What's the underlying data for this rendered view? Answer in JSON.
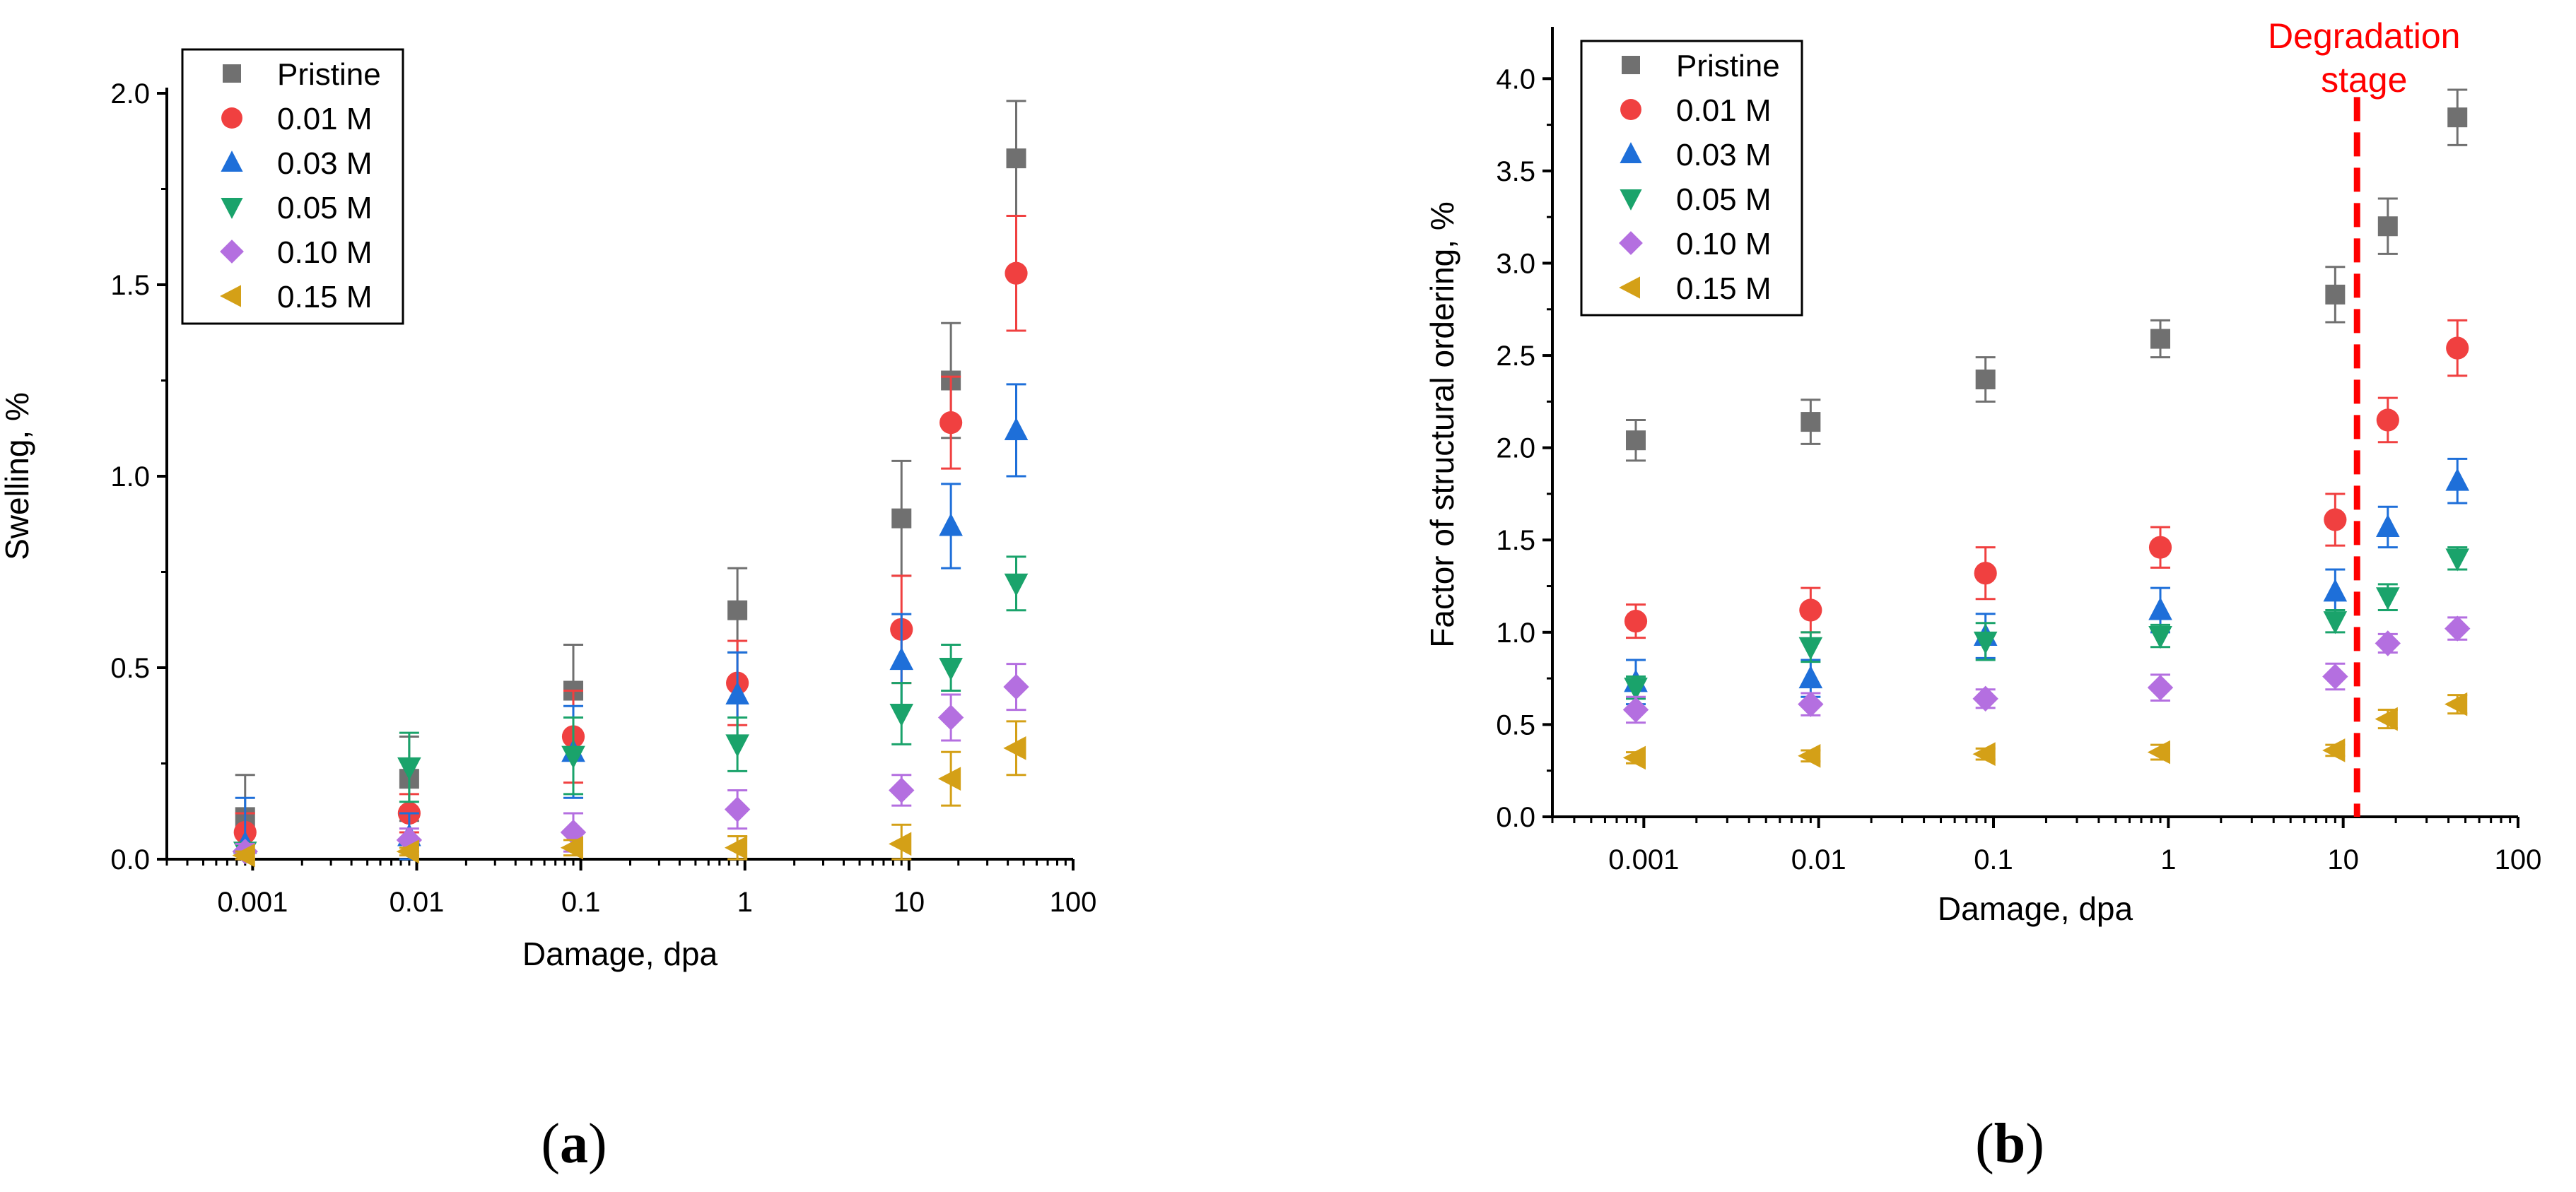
{
  "chart_data": [
    {
      "type": "scatter",
      "panel_label": "a",
      "xlabel": "Damage, dpa",
      "ylabel": "Swelling, %",
      "xscale": "log",
      "xlim": [
        0.0003,
        100
      ],
      "ylim": [
        0,
        2.0
      ],
      "xticks": [
        0.001,
        0.01,
        0.1,
        1,
        10,
        100
      ],
      "xtick_labels": [
        "0.001",
        "0.01",
        "0.1",
        "1",
        "10",
        "100"
      ],
      "yticks": [
        0,
        0.5,
        1.0,
        1.5,
        2.0
      ],
      "ytick_labels": [
        "0.0",
        "0.5",
        "1.0",
        "1.5",
        "2.0"
      ],
      "legend_position": "top-left",
      "series": [
        {
          "name": "Pristine",
          "color": "#707070",
          "marker": "square",
          "x": [
            0.0009,
            0.009,
            0.09,
            0.9,
            9,
            18,
            45
          ],
          "y": [
            0.11,
            0.21,
            0.44,
            0.65,
            0.89,
            1.25,
            1.83
          ],
          "err": [
            0.11,
            0.11,
            0.12,
            0.11,
            0.15,
            0.15,
            0.15
          ]
        },
        {
          "name": "0.01 M",
          "color": "#f04040",
          "marker": "circle",
          "x": [
            0.0009,
            0.009,
            0.09,
            0.9,
            9,
            18,
            45
          ],
          "y": [
            0.07,
            0.12,
            0.32,
            0.46,
            0.6,
            1.14,
            1.53
          ],
          "err": [
            0.05,
            0.05,
            0.12,
            0.11,
            0.14,
            0.12,
            0.15
          ]
        },
        {
          "name": "0.03 M",
          "color": "#1e6fd9",
          "marker": "triangle-up",
          "x": [
            0.0009,
            0.009,
            0.09,
            0.9,
            9,
            18,
            45
          ],
          "y": [
            0.04,
            0.06,
            0.28,
            0.43,
            0.52,
            0.87,
            1.12
          ],
          "err": [
            0.12,
            0.06,
            0.12,
            0.11,
            0.12,
            0.11,
            0.12
          ]
        },
        {
          "name": "0.05 M",
          "color": "#1aa36b",
          "marker": "triangle-down",
          "x": [
            0.0009,
            0.009,
            0.09,
            0.9,
            9,
            18,
            45
          ],
          "y": [
            0.02,
            0.24,
            0.27,
            0.3,
            0.38,
            0.5,
            0.72
          ],
          "err": [
            0.02,
            0.09,
            0.1,
            0.07,
            0.08,
            0.06,
            0.07
          ]
        },
        {
          "name": "0.10 M",
          "color": "#b46fe0",
          "marker": "diamond",
          "x": [
            0.0009,
            0.009,
            0.09,
            0.9,
            9,
            18,
            45
          ],
          "y": [
            0.02,
            0.05,
            0.07,
            0.13,
            0.18,
            0.37,
            0.45
          ],
          "err": [
            0.02,
            0.03,
            0.05,
            0.05,
            0.04,
            0.06,
            0.06
          ]
        },
        {
          "name": "0.15 M",
          "color": "#d4a017",
          "marker": "triangle-left",
          "x": [
            0.0009,
            0.009,
            0.09,
            0.9,
            9,
            18,
            45
          ],
          "y": [
            0.01,
            0.02,
            0.03,
            0.03,
            0.04,
            0.21,
            0.29
          ],
          "err": [
            0.01,
            0.01,
            0.02,
            0.03,
            0.05,
            0.07,
            0.07
          ]
        }
      ]
    },
    {
      "type": "scatter",
      "panel_label": "b",
      "xlabel": "Damage, dpa",
      "ylabel": "Factor of structural ordering, %",
      "xscale": "log",
      "xlim": [
        0.0003,
        100
      ],
      "ylim": [
        0,
        4.25
      ],
      "xticks": [
        0.001,
        0.01,
        0.1,
        1,
        10,
        100
      ],
      "xtick_labels": [
        "0.001",
        "0.01",
        "0.1",
        "1",
        "10",
        "100"
      ],
      "yticks": [
        0,
        0.5,
        1.0,
        1.5,
        2.0,
        2.5,
        3.0,
        3.5,
        4.0
      ],
      "ytick_labels": [
        "0.0",
        "0.5",
        "1.0",
        "1.5",
        "2.0",
        "2.5",
        "3.0",
        "3.5",
        "4.0"
      ],
      "legend_position": "top-left",
      "annotation": {
        "text_line1": "Degradation",
        "text_line2": "stage",
        "x": 12,
        "color": "#ff0000"
      },
      "series": [
        {
          "name": "Pristine",
          "color": "#707070",
          "marker": "square",
          "x": [
            0.0009,
            0.009,
            0.09,
            0.9,
            9,
            18,
            45
          ],
          "y": [
            2.04,
            2.14,
            2.37,
            2.59,
            2.83,
            3.2,
            3.79
          ],
          "err": [
            0.11,
            0.12,
            0.12,
            0.1,
            0.15,
            0.15,
            0.15
          ]
        },
        {
          "name": "0.01 M",
          "color": "#f04040",
          "marker": "circle",
          "x": [
            0.0009,
            0.009,
            0.09,
            0.9,
            9,
            18,
            45
          ],
          "y": [
            1.06,
            1.12,
            1.32,
            1.46,
            1.61,
            2.15,
            2.54
          ],
          "err": [
            0.09,
            0.12,
            0.14,
            0.11,
            0.14,
            0.12,
            0.15
          ]
        },
        {
          "name": "0.03 M",
          "color": "#1e6fd9",
          "marker": "triangle-up",
          "x": [
            0.0009,
            0.009,
            0.09,
            0.9,
            9,
            18,
            45
          ],
          "y": [
            0.73,
            0.75,
            0.98,
            1.12,
            1.22,
            1.57,
            1.82
          ],
          "err": [
            0.12,
            0.1,
            0.12,
            0.12,
            0.12,
            0.11,
            0.12
          ]
        },
        {
          "name": "0.05 M",
          "color": "#1aa36b",
          "marker": "triangle-down",
          "x": [
            0.0009,
            0.009,
            0.09,
            0.9,
            9,
            18,
            45
          ],
          "y": [
            0.7,
            0.92,
            0.95,
            0.98,
            1.06,
            1.19,
            1.4
          ],
          "err": [
            0.06,
            0.08,
            0.1,
            0.06,
            0.06,
            0.07,
            0.06
          ]
        },
        {
          "name": "0.10 M",
          "color": "#b46fe0",
          "marker": "diamond",
          "x": [
            0.0009,
            0.009,
            0.09,
            0.9,
            9,
            18,
            45
          ],
          "y": [
            0.58,
            0.61,
            0.64,
            0.7,
            0.76,
            0.94,
            1.02
          ],
          "err": [
            0.07,
            0.06,
            0.05,
            0.07,
            0.07,
            0.05,
            0.06
          ]
        },
        {
          "name": "0.15 M",
          "color": "#d4a017",
          "marker": "triangle-left",
          "x": [
            0.0009,
            0.009,
            0.09,
            0.9,
            9,
            18,
            45
          ],
          "y": [
            0.32,
            0.33,
            0.34,
            0.35,
            0.36,
            0.53,
            0.61
          ],
          "err": [
            0.03,
            0.03,
            0.03,
            0.04,
            0.03,
            0.05,
            0.05
          ]
        }
      ]
    }
  ]
}
